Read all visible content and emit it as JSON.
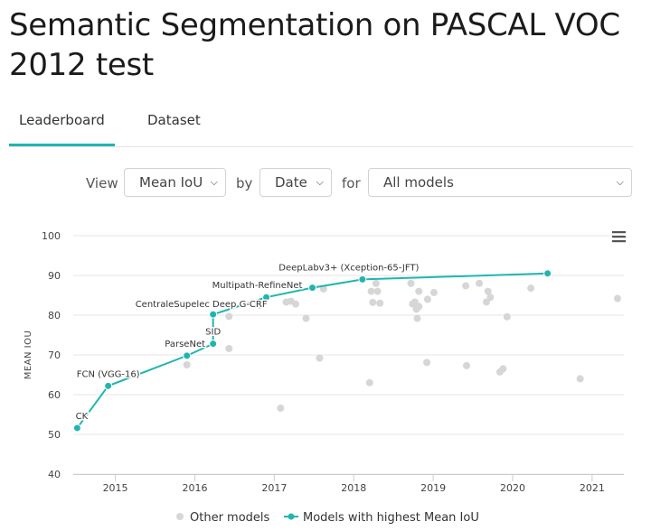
{
  "page": {
    "title": "Semantic Segmentation on PASCAL VOC 2012 test"
  },
  "tabs": [
    {
      "label": "Leaderboard",
      "active": true
    },
    {
      "label": "Dataset",
      "active": false
    }
  ],
  "controls": {
    "view_label": "View",
    "view_value": "Mean IoU",
    "by_label": "by",
    "by_value": "Date",
    "for_label": "for",
    "for_value": "All models"
  },
  "colors": {
    "accent": "#21b5b0",
    "other": "#d6d6d6"
  },
  "menu_icon": "hamburger-menu-icon",
  "chart_data": {
    "type": "scatter",
    "ylabel": "MEAN IOU",
    "xlabel": "",
    "ylim": [
      40,
      100
    ],
    "xlim": [
      2014.47,
      2021.4
    ],
    "y_ticks": [
      "40",
      "50",
      "60",
      "70",
      "80",
      "90",
      "100"
    ],
    "x_ticks": [
      "2015",
      "2016",
      "2017",
      "2018",
      "2019",
      "2020",
      "2021"
    ],
    "grid": "horizontal",
    "legend_position": "bottom-center",
    "legend": [
      "Other models",
      "Models with highest Mean IoU"
    ],
    "best_series": {
      "name": "Models with highest Mean IoU",
      "points": [
        {
          "x": 2014.52,
          "y": 51.6,
          "label": "CK"
        },
        {
          "x": 2014.91,
          "y": 62.2,
          "label": "FCN (VGG-16)"
        },
        {
          "x": 2015.9,
          "y": 69.8,
          "label": "ParseNet"
        },
        {
          "x": 2016.23,
          "y": 72.8,
          "label": "SID"
        },
        {
          "x": 2016.23,
          "y": 80.2,
          "label": "CentraleSupelec Deep G-CRF"
        },
        {
          "x": 2016.9,
          "y": 84.5,
          "label": "Multipath-RefineNet"
        },
        {
          "x": 2017.48,
          "y": 86.9,
          "label": ""
        },
        {
          "x": 2018.11,
          "y": 89.0,
          "label": "DeepLabv3+ (Xception-65-JFT)"
        },
        {
          "x": 2020.44,
          "y": 90.5,
          "label": ""
        }
      ]
    },
    "other_series": {
      "name": "Other models",
      "points": [
        {
          "x": 2015.9,
          "y": 67.5
        },
        {
          "x": 2016.43,
          "y": 71.6
        },
        {
          "x": 2016.43,
          "y": 79.7
        },
        {
          "x": 2016.82,
          "y": 82.5
        },
        {
          "x": 2017.08,
          "y": 56.6
        },
        {
          "x": 2017.15,
          "y": 83.3
        },
        {
          "x": 2017.21,
          "y": 83.5
        },
        {
          "x": 2017.27,
          "y": 82.8
        },
        {
          "x": 2017.4,
          "y": 79.2
        },
        {
          "x": 2017.57,
          "y": 69.2
        },
        {
          "x": 2017.62,
          "y": 86.6
        },
        {
          "x": 2018.2,
          "y": 63.0
        },
        {
          "x": 2018.22,
          "y": 86.0
        },
        {
          "x": 2018.24,
          "y": 83.2
        },
        {
          "x": 2018.28,
          "y": 88.0
        },
        {
          "x": 2018.3,
          "y": 86.0
        },
        {
          "x": 2018.33,
          "y": 83.0
        },
        {
          "x": 2018.72,
          "y": 88.0
        },
        {
          "x": 2018.74,
          "y": 82.8
        },
        {
          "x": 2018.77,
          "y": 83.3
        },
        {
          "x": 2018.79,
          "y": 81.5
        },
        {
          "x": 2018.8,
          "y": 79.2
        },
        {
          "x": 2018.82,
          "y": 82.2
        },
        {
          "x": 2018.82,
          "y": 86.0
        },
        {
          "x": 2018.92,
          "y": 68.1
        },
        {
          "x": 2018.93,
          "y": 84.0
        },
        {
          "x": 2019.01,
          "y": 85.7
        },
        {
          "x": 2019.41,
          "y": 87.4
        },
        {
          "x": 2019.42,
          "y": 67.3
        },
        {
          "x": 2019.58,
          "y": 88.0
        },
        {
          "x": 2019.67,
          "y": 83.3
        },
        {
          "x": 2019.69,
          "y": 86.0
        },
        {
          "x": 2019.72,
          "y": 84.5
        },
        {
          "x": 2019.84,
          "y": 65.7
        },
        {
          "x": 2019.88,
          "y": 66.5
        },
        {
          "x": 2019.93,
          "y": 79.6
        },
        {
          "x": 2020.23,
          "y": 86.8
        },
        {
          "x": 2020.85,
          "y": 64.0
        },
        {
          "x": 2021.32,
          "y": 84.2
        }
      ]
    }
  }
}
